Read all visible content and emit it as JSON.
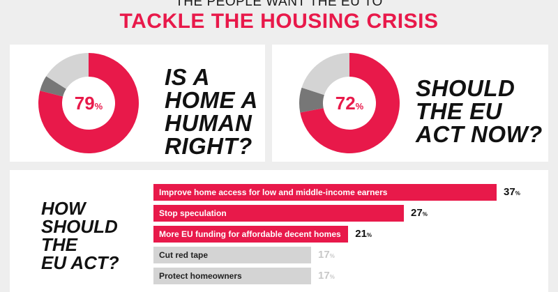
{
  "header": {
    "subtitle": "THE PEOPLE WANT THE EU TO",
    "title": "TACKLE THE HOUSING CRISIS"
  },
  "colors": {
    "accent": "#e8194a",
    "grey_light": "#d4d4d4",
    "grey_dark": "#777777",
    "value_muted": "#c8c8c8"
  },
  "chart_data": [
    {
      "type": "pie",
      "title": "",
      "question_lines": [
        "IS A",
        "HOME A",
        "HUMAN",
        "RIGHT?"
      ],
      "center_label": "79",
      "center_unit": "%",
      "slices": [
        {
          "value": 79,
          "color": "#e8194a"
        },
        {
          "value": 5,
          "color": "#777777"
        },
        {
          "value": 16,
          "color": "#d4d4d4"
        }
      ]
    },
    {
      "type": "pie",
      "title": "",
      "question_lines": [
        "SHOULD",
        "THE EU",
        "ACT NOW?"
      ],
      "center_label": "72",
      "center_unit": "%",
      "slices": [
        {
          "value": 72,
          "color": "#e8194a"
        },
        {
          "value": 8,
          "color": "#777777"
        },
        {
          "value": 20,
          "color": "#d4d4d4"
        }
      ]
    },
    {
      "type": "bar",
      "title": "",
      "question_lines": [
        "HOW",
        "SHOULD",
        "THE",
        "EU ACT?"
      ],
      "categories": [
        "Improve home access for low and middle-income earners",
        "Stop speculation",
        "More EU funding for affordable decent homes",
        "Cut red tape",
        "Protect homeowners"
      ],
      "values": [
        37,
        27,
        21,
        17,
        17
      ],
      "value_labels": [
        "37",
        "27",
        "21",
        "17",
        "17"
      ],
      "unit": "%",
      "highlighted": [
        true,
        true,
        true,
        false,
        false
      ],
      "xlim": [
        0,
        37
      ]
    }
  ]
}
